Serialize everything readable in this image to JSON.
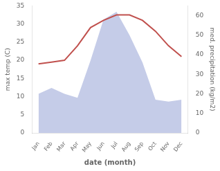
{
  "chart_data": {
    "type": "line",
    "categories": [
      "Jan",
      "Feb",
      "Mar",
      "Apr",
      "May",
      "Jun",
      "Jul",
      "Aug",
      "Sep",
      "Oct",
      "Nov",
      "Dec"
    ],
    "xlabel": "date (month)",
    "ylabel": "max temp (C)",
    "y2label": "med. precipitation (kg/m2)",
    "series": [
      {
        "type": "line",
        "color": "#c0504d",
        "values": [
          19,
          19.5,
          20,
          24,
          29,
          31,
          32.5,
          32.5,
          31,
          28,
          24,
          21
        ]
      },
      {
        "type": "area",
        "axis": "y2",
        "color": "#c5cce8",
        "values": [
          20,
          23,
          20,
          18,
          37,
          58,
          62,
          50,
          36,
          17,
          16,
          17
        ]
      }
    ],
    "ylim": [
      0,
      35
    ],
    "yticks": [
      0,
      5,
      10,
      15,
      20,
      25,
      30,
      35
    ],
    "y2lim": [
      0,
      65
    ],
    "y2ticks": [
      0,
      10,
      20,
      30,
      40,
      50,
      60
    ],
    "grid": false
  }
}
